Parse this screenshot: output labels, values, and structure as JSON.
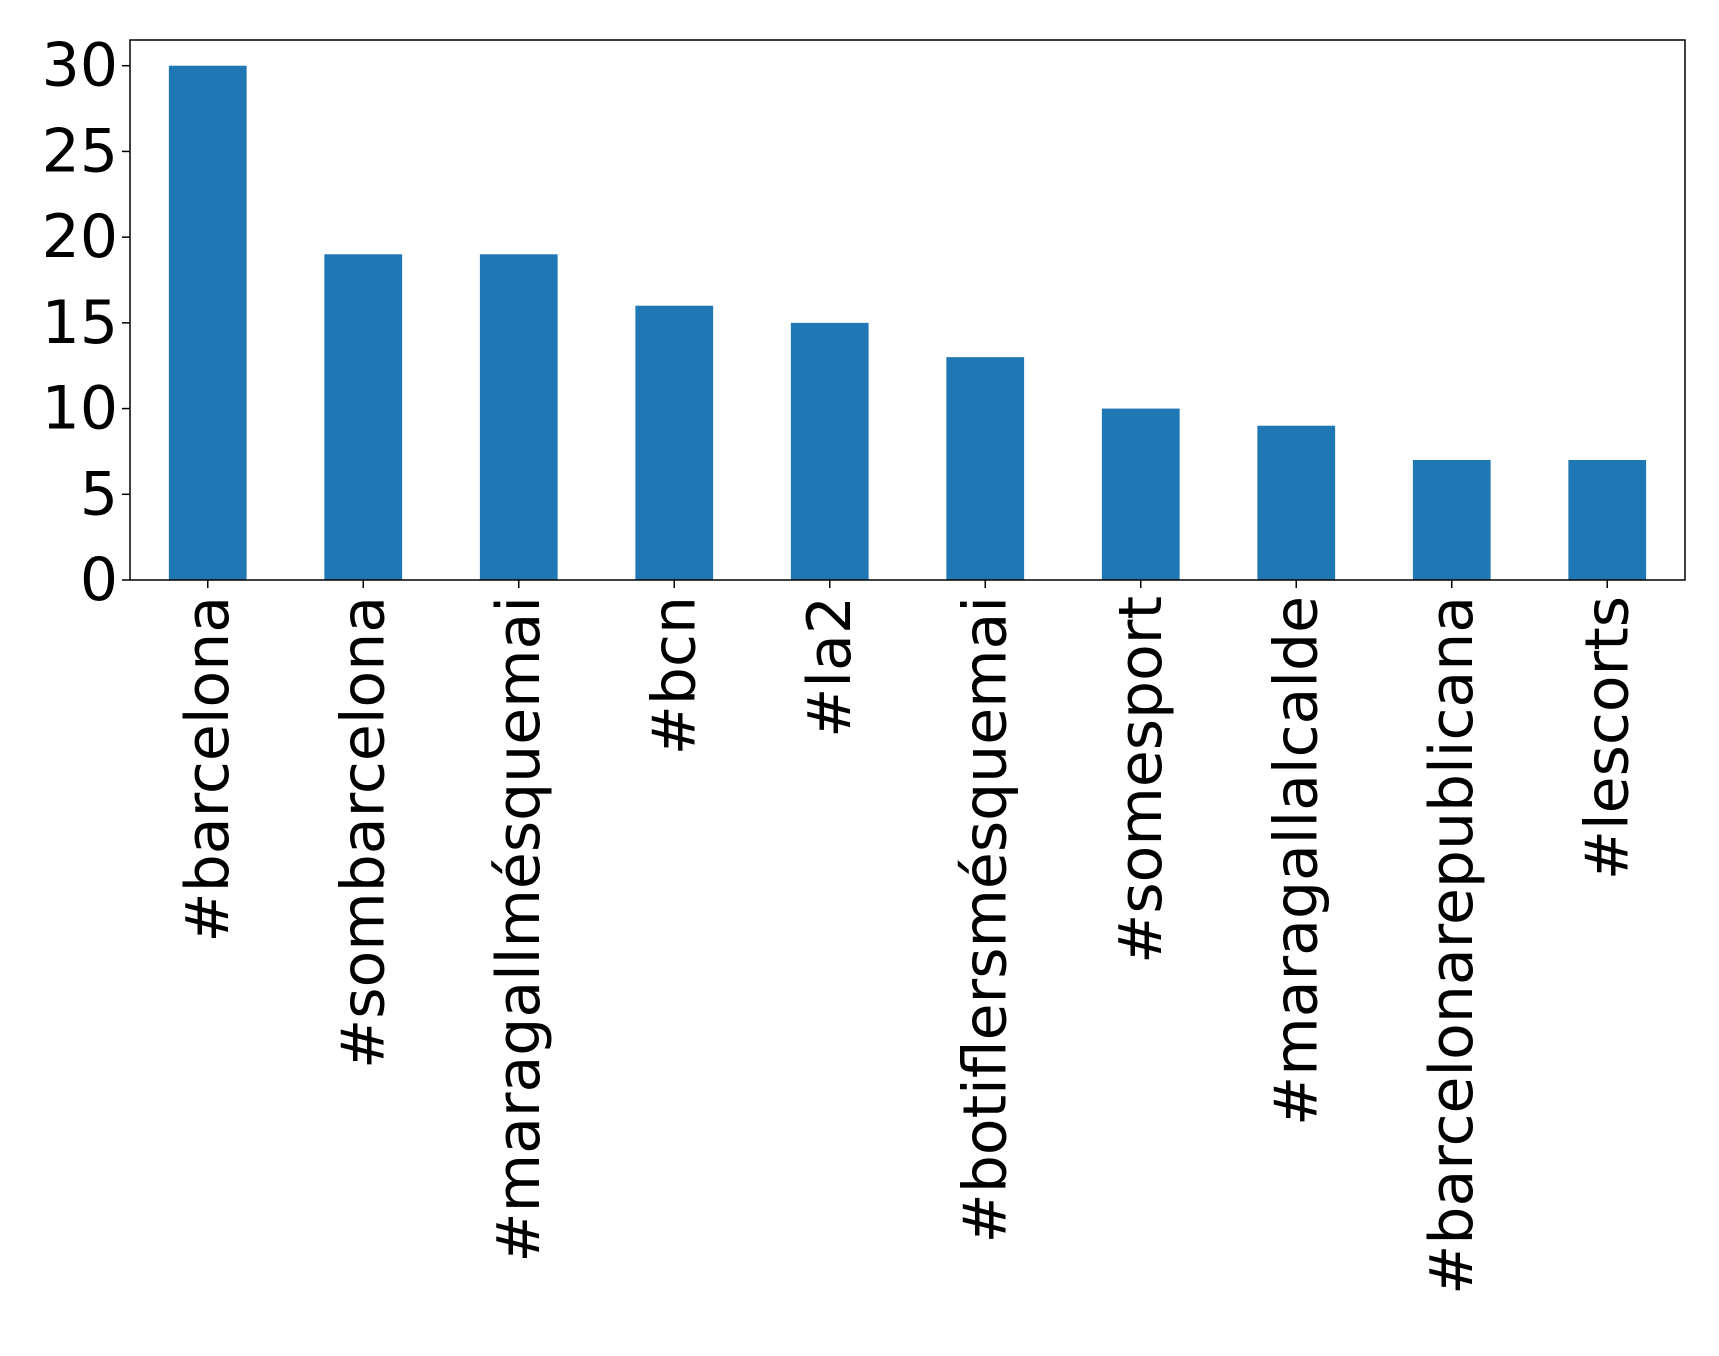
{
  "chart_data": {
    "type": "bar",
    "title": "",
    "xlabel": "",
    "ylabel": "",
    "categories": [
      "#barcelona",
      "#sombarcelona",
      "#maragallmésquemai",
      "#bcn",
      "#la2",
      "#botiflersmésquemai",
      "#somesport",
      "#maragallalcalde",
      "#barcelonarepublicana",
      "#lescorts"
    ],
    "values": [
      30,
      19,
      19,
      16,
      15,
      13,
      10,
      9,
      7,
      7
    ],
    "ylim": [
      0,
      31.5
    ],
    "yticks": [
      0,
      5,
      10,
      15,
      20,
      25,
      30
    ],
    "bar_color": "#1f77b4",
    "grid": false,
    "legend": "none"
  }
}
